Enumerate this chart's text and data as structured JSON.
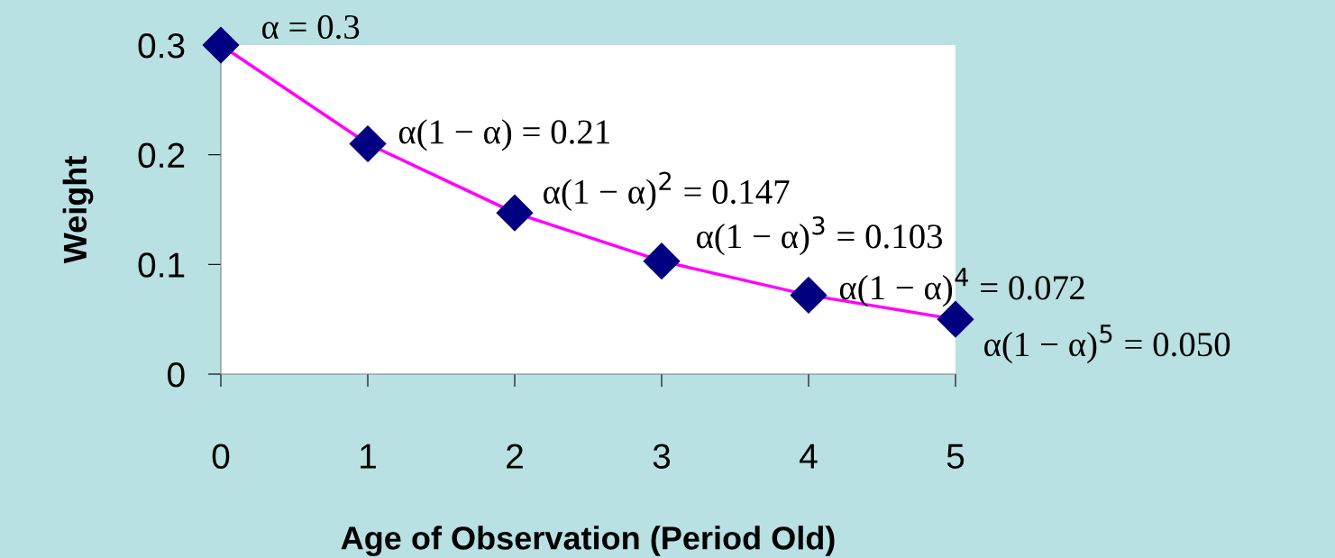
{
  "chart_data": {
    "type": "line",
    "xlabel": "Age of Observation (Period Old)",
    "ylabel": "Weight",
    "x": [
      0,
      1,
      2,
      3,
      4,
      5
    ],
    "series": [
      {
        "color": "#ff00ff",
        "colors": [
          "#000080",
          "#000080",
          "#000080",
          "#000080",
          "#000080",
          "#000080"
        ],
        "values": [
          0.3,
          0.21,
          0.147,
          0.103,
          0.072,
          0.05
        ]
      }
    ],
    "marker": "diamond",
    "line_style": "solid",
    "grid": false,
    "xlim": [
      0,
      5
    ],
    "ylim": [
      0,
      0.3
    ],
    "xticks": [
      0,
      1,
      2,
      3,
      4,
      5
    ],
    "yticks": [
      0,
      0.1,
      0.2,
      0.3
    ],
    "annotations": [
      {
        "text": "α = 0.3",
        "x": 0,
        "y": 0.3
      },
      {
        "text": "α(1 − α) = 0.21",
        "x": 1,
        "y": 0.21
      },
      {
        "text": "α(1 − α)$^{2}$ = 0.147",
        "x": 2,
        "y": 0.147
      },
      {
        "text": "α(1 − α)$^{3}$ = 0.103",
        "x": 3,
        "y": 0.103
      },
      {
        "text": "α(1 − α)$^{4}$ = 0.072",
        "x": 4,
        "y": 0.072
      },
      {
        "text": "α(1 − α)$^{5}$ = 0.050",
        "x": 5,
        "y": 0.05
      }
    ]
  }
}
